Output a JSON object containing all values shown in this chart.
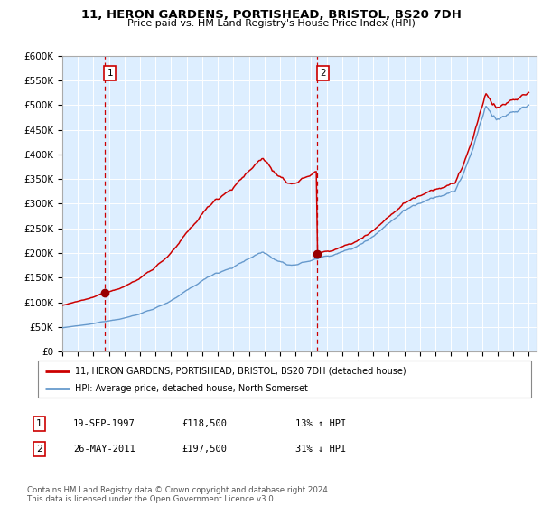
{
  "title_line1": "11, HERON GARDENS, PORTISHEAD, BRISTOL, BS20 7DH",
  "title_line2": "Price paid vs. HM Land Registry's House Price Index (HPI)",
  "ylim": [
    0,
    600000
  ],
  "yticks": [
    0,
    50000,
    100000,
    150000,
    200000,
    250000,
    300000,
    350000,
    400000,
    450000,
    500000,
    550000,
    600000
  ],
  "ytick_labels": [
    "£0",
    "£50K",
    "£100K",
    "£150K",
    "£200K",
    "£250K",
    "£300K",
    "£350K",
    "£400K",
    "£450K",
    "£500K",
    "£550K",
    "£600K"
  ],
  "transaction1_price": 118500,
  "transaction1_x": 1997.72,
  "transaction1_label": "1",
  "transaction2_price": 197500,
  "transaction2_x": 2011.4,
  "transaction2_label": "2",
  "legend_line1": "11, HERON GARDENS, PORTISHEAD, BRISTOL, BS20 7DH (detached house)",
  "legend_line2": "HPI: Average price, detached house, North Somerset",
  "table_row1_label": "1",
  "table_row1_date": "19-SEP-1997",
  "table_row1_price": "£118,500",
  "table_row1_hpi": "13% ↑ HPI",
  "table_row2_label": "2",
  "table_row2_date": "26-MAY-2011",
  "table_row2_price": "£197,500",
  "table_row2_hpi": "31% ↓ HPI",
  "footer": "Contains HM Land Registry data © Crown copyright and database right 2024.\nThis data is licensed under the Open Government Licence v3.0.",
  "red_line_color": "#cc0000",
  "blue_line_color": "#6699cc",
  "bg_color": "#ddeeff",
  "dashed_line_color": "#cc0000",
  "marker_color": "#990000",
  "box_color": "#cc0000",
  "grid_color": "#ffffff",
  "spine_color": "#aaaaaa"
}
